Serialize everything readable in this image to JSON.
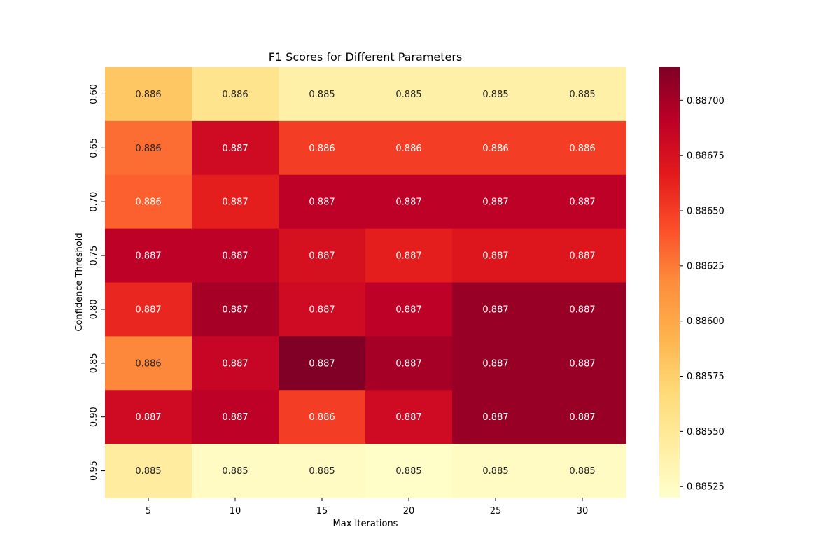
{
  "chart_data": {
    "type": "heatmap",
    "title": "F1 Scores for Different Parameters",
    "xlabel": "Max Iterations",
    "ylabel": "Confidence Threshold",
    "x_categories": [
      "5",
      "10",
      "15",
      "20",
      "25",
      "30"
    ],
    "y_categories": [
      "0.60",
      "0.65",
      "0.70",
      "0.75",
      "0.80",
      "0.85",
      "0.90",
      "0.95"
    ],
    "values": [
      [
        0.8858,
        0.88555,
        0.8854,
        0.8854,
        0.8854,
        0.8854
      ],
      [
        0.8863,
        0.8868,
        0.8865,
        0.8865,
        0.8865,
        0.8865
      ],
      [
        0.88635,
        0.88665,
        0.8869,
        0.8869,
        0.8869,
        0.8869
      ],
      [
        0.8869,
        0.8869,
        0.88675,
        0.88665,
        0.8867,
        0.8867
      ],
      [
        0.8866,
        0.887,
        0.8868,
        0.8869,
        0.88705,
        0.88705
      ],
      [
        0.8862,
        0.88685,
        0.88715,
        0.887,
        0.88705,
        0.88705
      ],
      [
        0.8868,
        0.8869,
        0.8865,
        0.8868,
        0.88705,
        0.88705
      ],
      [
        0.88545,
        0.88525,
        0.88525,
        0.88522,
        0.88525,
        0.88525
      ]
    ],
    "cell_labels": [
      [
        "0.886",
        "0.886",
        "0.885",
        "0.885",
        "0.885",
        "0.885"
      ],
      [
        "0.886",
        "0.887",
        "0.886",
        "0.886",
        "0.886",
        "0.886"
      ],
      [
        "0.886",
        "0.887",
        "0.887",
        "0.887",
        "0.887",
        "0.887"
      ],
      [
        "0.887",
        "0.887",
        "0.887",
        "0.887",
        "0.887",
        "0.887"
      ],
      [
        "0.887",
        "0.887",
        "0.887",
        "0.887",
        "0.887",
        "0.887"
      ],
      [
        "0.886",
        "0.887",
        "0.887",
        "0.887",
        "0.887",
        "0.887"
      ],
      [
        "0.887",
        "0.887",
        "0.886",
        "0.887",
        "0.887",
        "0.887"
      ],
      [
        "0.885",
        "0.885",
        "0.885",
        "0.885",
        "0.885",
        "0.885"
      ]
    ],
    "colormap": "YlOrRd",
    "vmin": 0.8852,
    "vmax": 0.88715,
    "colorbar_ticks": [
      "0.88525",
      "0.88550",
      "0.88575",
      "0.88600",
      "0.88625",
      "0.88650",
      "0.88675",
      "0.88700"
    ],
    "legend": "colorbar-right"
  }
}
